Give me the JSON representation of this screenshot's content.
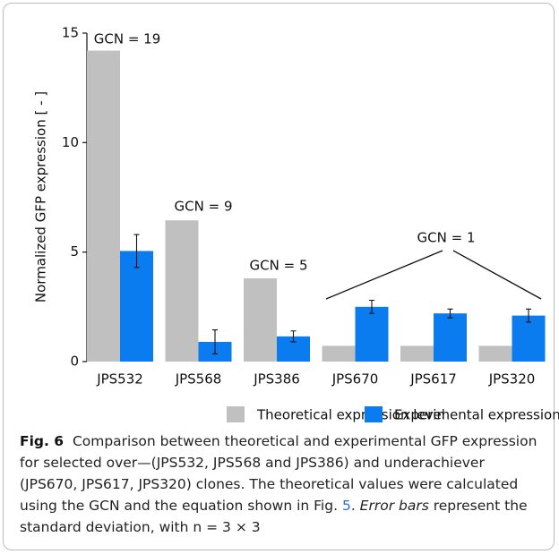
{
  "chart_data": {
    "type": "bar",
    "y_label": "Normalized GFP expression [ - ]",
    "categories": [
      "JPS532",
      "JPS568",
      "JPS386",
      "JPS670",
      "JPS617",
      "JPS320"
    ],
    "series": [
      {
        "name": "Theoretical expression level",
        "color": "#c0c0c0",
        "values": [
          14.2,
          6.45,
          3.8,
          0.72,
          0.72,
          0.72
        ]
      },
      {
        "name": "Experimental expression level",
        "color": "#0a7cf0",
        "values": [
          5.05,
          0.9,
          1.15,
          2.5,
          2.2,
          2.1
        ],
        "errors": [
          0.75,
          0.55,
          0.25,
          0.3,
          0.2,
          0.3
        ]
      }
    ],
    "annotations": [
      "GCN = 19",
      "GCN = 9",
      "GCN = 5",
      "GCN = 1"
    ],
    "ylim": [
      0,
      15
    ],
    "yticks": [
      0,
      5,
      10,
      15
    ]
  },
  "caption": {
    "label": "Fig. 6",
    "text_1": "Comparison between theoretical and experimental GFP expression for selected over—(JPS532, JPS568 and JPS386) and underachiever (JPS670, JPS617, JPS320) clones. The theoretical values were calculated using the GCN and the equation shown in Fig. ",
    "fig_ref": "5",
    "text_2": ". ",
    "italic": "Error bars",
    "text_3": " represent the standard deviation, with n = 3 × 3"
  }
}
